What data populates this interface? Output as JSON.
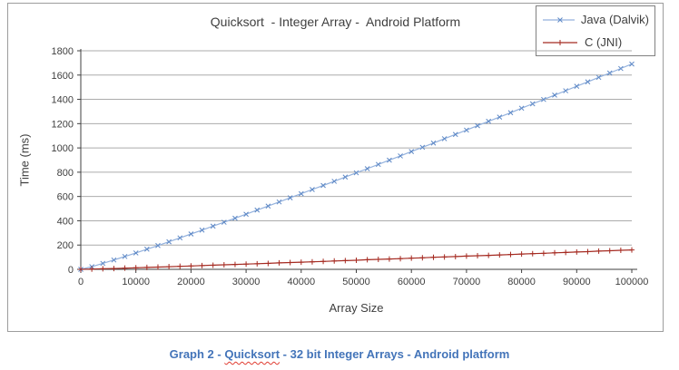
{
  "chart": {
    "title": "Quicksort  - Integer Array -  Android Platform",
    "x_axis_label": "Array Size",
    "y_axis_label": "Time (ms)",
    "legend": [
      {
        "label": "Java (Dalvik)",
        "marker": "x"
      },
      {
        "label": "C (JNI)",
        "marker": "plus"
      }
    ]
  },
  "caption": {
    "prefix": "Graph 2 - ",
    "misspelled_word": "Quicksort",
    "suffix": " - 32 bit Integer Arrays - Android platform",
    "color": "#4374b9"
  },
  "colors": {
    "java_line": "#93b1dd",
    "java_marker": "#5c87c5",
    "c_line": "#a52a21",
    "c_marker": "#a52a21",
    "gridline": "#ababab",
    "axis": "#3f3f3f",
    "frame_border": "#9d9d9d"
  },
  "chart_data": {
    "type": "line",
    "title": "Quicksort - Integer Array - Android Platform",
    "xlabel": "Array Size",
    "ylabel": "Time (ms)",
    "xlim": [
      0,
      100000
    ],
    "ylim": [
      0,
      1800
    ],
    "x_ticks": [
      0,
      10000,
      20000,
      30000,
      40000,
      50000,
      60000,
      70000,
      80000,
      90000,
      100000
    ],
    "y_ticks": [
      0,
      200,
      400,
      600,
      800,
      1000,
      1200,
      1400,
      1600,
      1800
    ],
    "grid": "horizontal",
    "legend_position": "top-right",
    "x": [
      0,
      2000,
      4000,
      6000,
      8000,
      10000,
      12000,
      14000,
      16000,
      18000,
      20000,
      22000,
      24000,
      26000,
      28000,
      30000,
      32000,
      34000,
      36000,
      38000,
      40000,
      42000,
      44000,
      46000,
      48000,
      50000,
      52000,
      54000,
      56000,
      58000,
      60000,
      62000,
      64000,
      66000,
      68000,
      70000,
      72000,
      74000,
      76000,
      78000,
      80000,
      82000,
      84000,
      86000,
      88000,
      90000,
      92000,
      94000,
      96000,
      98000,
      100000
    ],
    "series": [
      {
        "name": "Java (Dalvik)",
        "marker": "x",
        "values": [
          0,
          22,
          49,
          77,
          106,
          135,
          166,
          196,
          227,
          259,
          291,
          323,
          356,
          388,
          421,
          454,
          488,
          521,
          555,
          589,
          623,
          657,
          691,
          725,
          760,
          795,
          829,
          864,
          899,
          934,
          970,
          1005,
          1040,
          1076,
          1111,
          1147,
          1183,
          1219,
          1254,
          1290,
          1327,
          1363,
          1399,
          1435,
          1471,
          1508,
          1544,
          1581,
          1617,
          1654,
          1691
        ]
      },
      {
        "name": "C (JNI)",
        "marker": "plus",
        "values": [
          0,
          2,
          5,
          7,
          10,
          13,
          16,
          19,
          22,
          25,
          28,
          31,
          34,
          37,
          40,
          43,
          46,
          49,
          53,
          56,
          59,
          62,
          65,
          69,
          72,
          75,
          79,
          82,
          85,
          88,
          92,
          95,
          99,
          102,
          105,
          109,
          112,
          115,
          119,
          122,
          126,
          129,
          132,
          136,
          139,
          143,
          146,
          150,
          153,
          157,
          160
        ]
      }
    ]
  }
}
